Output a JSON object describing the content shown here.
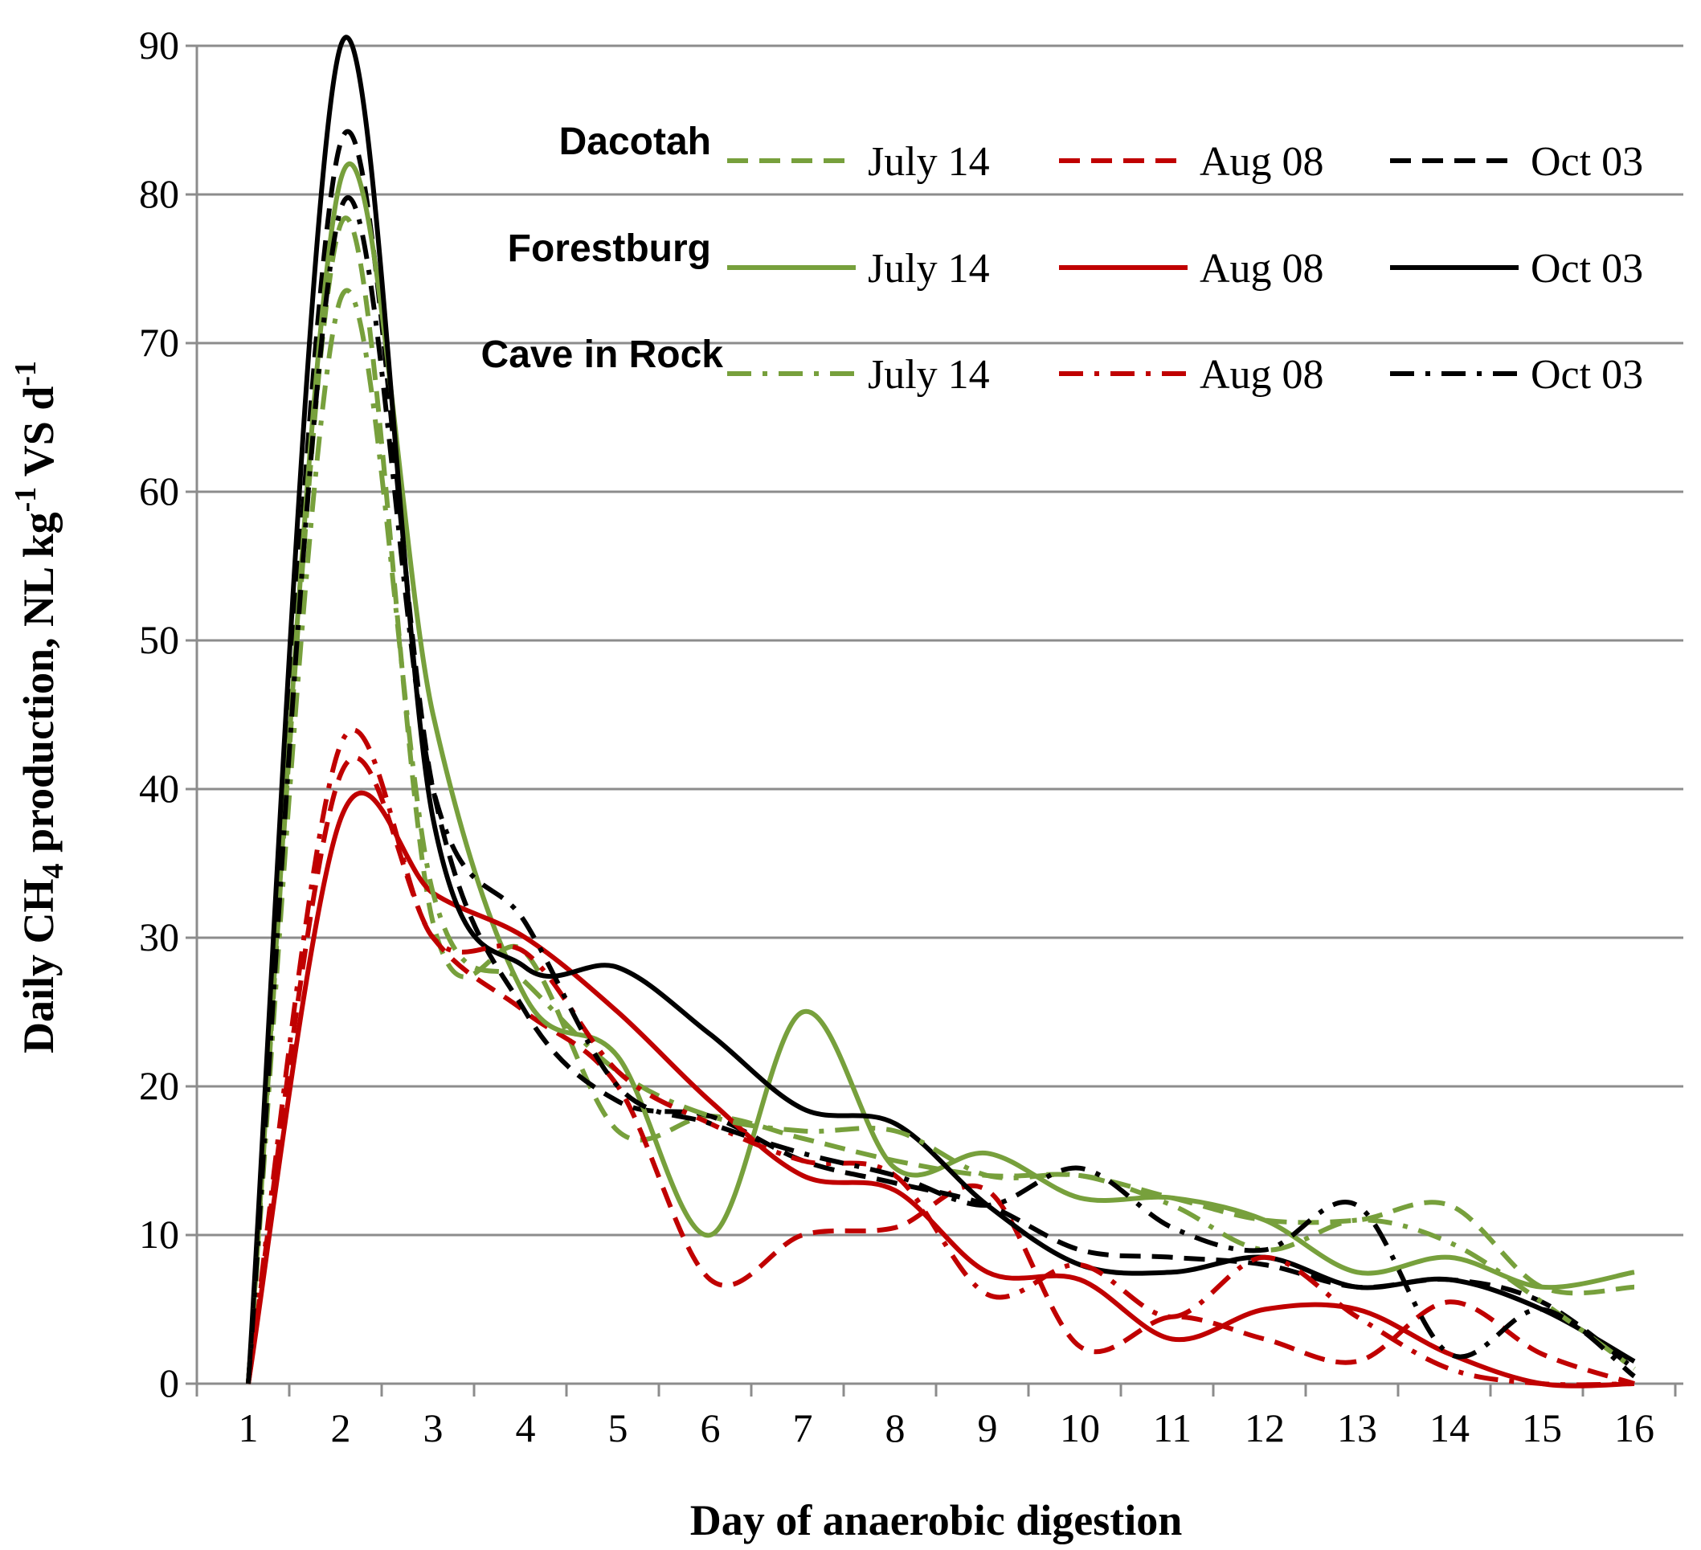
{
  "chart_data": {
    "type": "line",
    "xlabel": "Day of anaerobic digestion",
    "ylabel_parts": [
      "Daily CH",
      "4",
      " production, NL kg",
      "-1",
      " VS d",
      "-1"
    ],
    "x": [
      1,
      2,
      3,
      4,
      5,
      6,
      7,
      8,
      9,
      10,
      11,
      12,
      13,
      14,
      15,
      16
    ],
    "xlim": [
      1,
      16
    ],
    "ylim": [
      0,
      90
    ],
    "yticks": [
      0,
      10,
      20,
      30,
      40,
      50,
      60,
      70,
      80,
      90
    ],
    "grid": true,
    "legend_position": "top-right",
    "legend_groups": [
      "Dacotah",
      "Forestburg",
      "Cave in Rock"
    ],
    "legend_labels": [
      "July 14",
      "Aug 08",
      "Oct 03"
    ],
    "colors": {
      "July 14": "#77a03c",
      "Aug 08": "#c00000",
      "Oct 03": "#000000"
    },
    "series": [
      {
        "group": "Dacotah",
        "date": "July 14",
        "color": "#77a03c",
        "style": "dashed",
        "values": [
          0,
          78,
          31,
          29,
          17,
          18,
          16.5,
          15,
          14,
          14,
          12.5,
          11,
          11,
          12,
          6.5,
          6.5
        ]
      },
      {
        "group": "Dacotah",
        "date": "Aug 08",
        "color": "#c00000",
        "style": "dashed",
        "values": [
          0,
          41,
          30,
          25,
          20,
          7,
          10,
          10.5,
          13,
          2.5,
          4.5,
          3,
          1.5,
          5.5,
          2,
          0
        ]
      },
      {
        "group": "Dacotah",
        "date": "Oct 03",
        "color": "#000000",
        "style": "dashed",
        "values": [
          0,
          83.5,
          40,
          25,
          19,
          18,
          15,
          13.5,
          12,
          9,
          8.5,
          8,
          6.5,
          7,
          5.5,
          1
        ]
      },
      {
        "group": "Forestburg",
        "date": "July 14",
        "color": "#77a03c",
        "style": "solid",
        "values": [
          0,
          81,
          45,
          26,
          22,
          10,
          25,
          14.5,
          15.5,
          12.5,
          12.5,
          11,
          7.5,
          8.5,
          6.5,
          7.5
        ]
      },
      {
        "group": "Forestburg",
        "date": "Aug 08",
        "color": "#c00000",
        "style": "solid",
        "values": [
          0,
          38,
          33,
          30,
          25,
          19,
          14,
          13,
          7.5,
          7,
          3,
          5,
          5,
          2,
          0,
          0
        ]
      },
      {
        "group": "Forestburg",
        "date": "Oct 03",
        "color": "#000000",
        "style": "solid",
        "values": [
          0,
          90,
          38,
          28,
          28,
          23.5,
          18.5,
          17.5,
          12,
          8,
          7.5,
          8.5,
          6.5,
          7,
          5,
          1.5
        ]
      },
      {
        "group": "Cave in Rock",
        "date": "July 14",
        "color": "#77a03c",
        "style": "dashdot",
        "values": [
          0,
          73,
          33,
          27,
          21,
          18,
          17,
          17,
          14,
          14,
          12,
          9,
          11,
          9.5,
          5.5,
          1
        ]
      },
      {
        "group": "Cave in Rock",
        "date": "Aug 08",
        "color": "#c00000",
        "style": "dashdot",
        "values": [
          0,
          43,
          30,
          29,
          21,
          17.5,
          15,
          14,
          6,
          8,
          4.5,
          8.5,
          4.5,
          1,
          0,
          0
        ]
      },
      {
        "group": "Cave in Rock",
        "date": "Oct 03",
        "color": "#000000",
        "style": "dashdot",
        "values": [
          0,
          79,
          40,
          31,
          20,
          17.5,
          15.5,
          14,
          12,
          14.5,
          10.5,
          9,
          12,
          2,
          5,
          0.5
        ]
      }
    ]
  }
}
